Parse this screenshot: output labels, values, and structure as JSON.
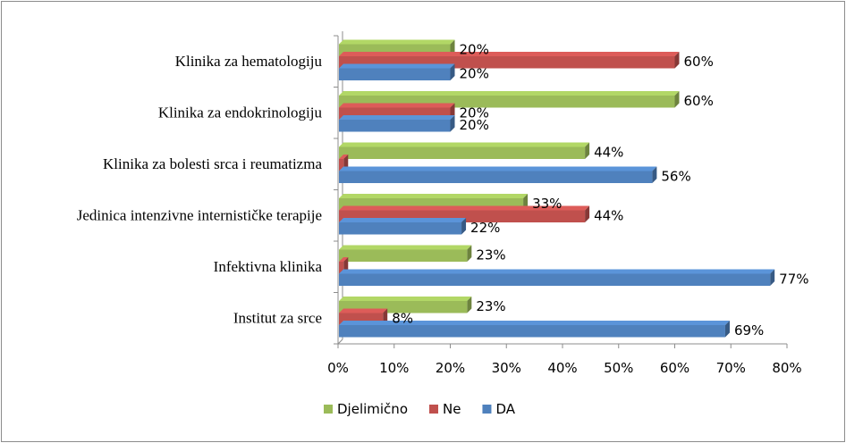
{
  "chart_data": {
    "type": "bar",
    "orientation": "horizontal",
    "style": "3d-clustered",
    "categories": [
      "Klinika za hematologiju",
      "Klinika za endokrinologiju",
      "Klinika za bolesti srca i reumatizma",
      "Jedinica intenzivne internističke terapije",
      "Infektivna klinika",
      "Institut za srce"
    ],
    "series": [
      {
        "name": "Djelimično",
        "color": "#9bbb59",
        "values": [
          20,
          60,
          44,
          33,
          23,
          23
        ],
        "labels": [
          "20%",
          "60%",
          "44%",
          "33%",
          "23%",
          "23%"
        ]
      },
      {
        "name": "Ne",
        "color": "#c0504d",
        "values": [
          60,
          20,
          1,
          44,
          1,
          8
        ],
        "labels": [
          "60%",
          "20%",
          "",
          "44%",
          "",
          "8%"
        ]
      },
      {
        "name": "DA",
        "color": "#4f81bd",
        "values": [
          20,
          20,
          56,
          22,
          77,
          69
        ],
        "labels": [
          "20%",
          "20%",
          "56%",
          "22%",
          "77%",
          "69%"
        ]
      }
    ],
    "xlim": [
      0,
      80
    ],
    "xticks": [
      "0%",
      "10%",
      "20%",
      "30%",
      "40%",
      "50%",
      "60%",
      "70%",
      "80%"
    ],
    "grid": false,
    "legend_position": "bottom",
    "legend": [
      "Djelimično",
      "Ne",
      "DA"
    ]
  }
}
